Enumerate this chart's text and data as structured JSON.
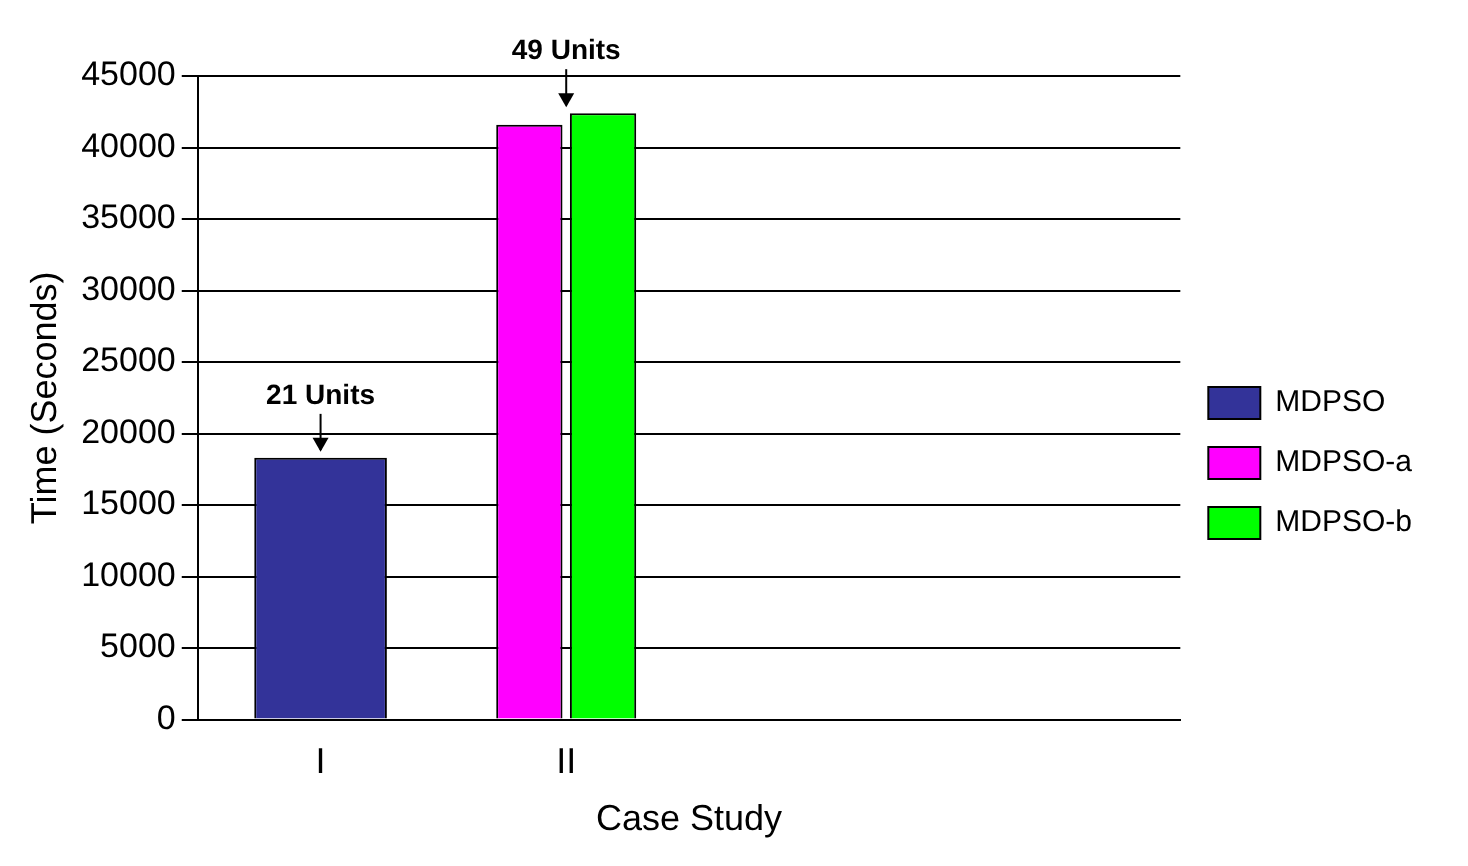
{
  "chart_data": {
    "type": "bar",
    "xlabel": "Case Study",
    "ylabel": "Time (Seconds)",
    "categories": [
      "I",
      "II",
      null,
      null
    ],
    "series": [
      {
        "name": "MDPSO",
        "color": "#333399",
        "values": [
          18300,
          null,
          null,
          null
        ]
      },
      {
        "name": "MDPSO-a",
        "color": "#ff00ff",
        "values": [
          null,
          41600,
          null,
          null
        ]
      },
      {
        "name": "MDPSO-b",
        "color": "#00ff00",
        "values": [
          null,
          42400,
          null,
          null
        ]
      }
    ],
    "ylim": [
      0,
      45000
    ],
    "yticks": [
      0,
      5000,
      10000,
      15000,
      20000,
      25000,
      30000,
      35000,
      40000,
      45000
    ],
    "grid": "y",
    "legend": "right",
    "annotations": [
      {
        "text": "21 Units",
        "x": "I",
        "y": 18300
      },
      {
        "text": "49 Units",
        "x": "II",
        "y": 42400
      }
    ]
  }
}
